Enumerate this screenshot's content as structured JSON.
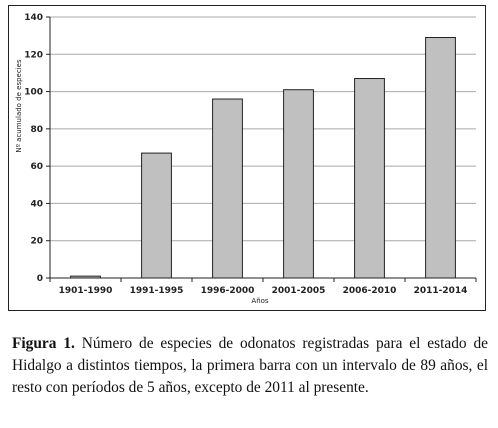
{
  "chart_data": {
    "type": "bar",
    "categories": [
      "1901-1990",
      "1991-1995",
      "1996-2000",
      "2001-2005",
      "2006-2010",
      "2011-2014"
    ],
    "values": [
      1,
      67,
      96,
      101,
      107,
      129
    ],
    "xlabel": "Años",
    "ylabel": "Nº acumulado de especies",
    "ylim": [
      0,
      140
    ],
    "yticks": [
      0,
      20,
      40,
      60,
      80,
      100,
      120,
      140
    ],
    "grid": true,
    "bar_color": "#c0c0c0",
    "bar_edge_color": "#222222",
    "grid_color": "#a8a8a8"
  },
  "caption": {
    "label": "Figura 1.",
    "text": " Número de especies de odonatos registradas para el estado de Hidalgo a distintos tiempos, la primera barra con un intervalo de 89 años, el resto con períodos de 5 años, excepto de 2011 al presente."
  }
}
